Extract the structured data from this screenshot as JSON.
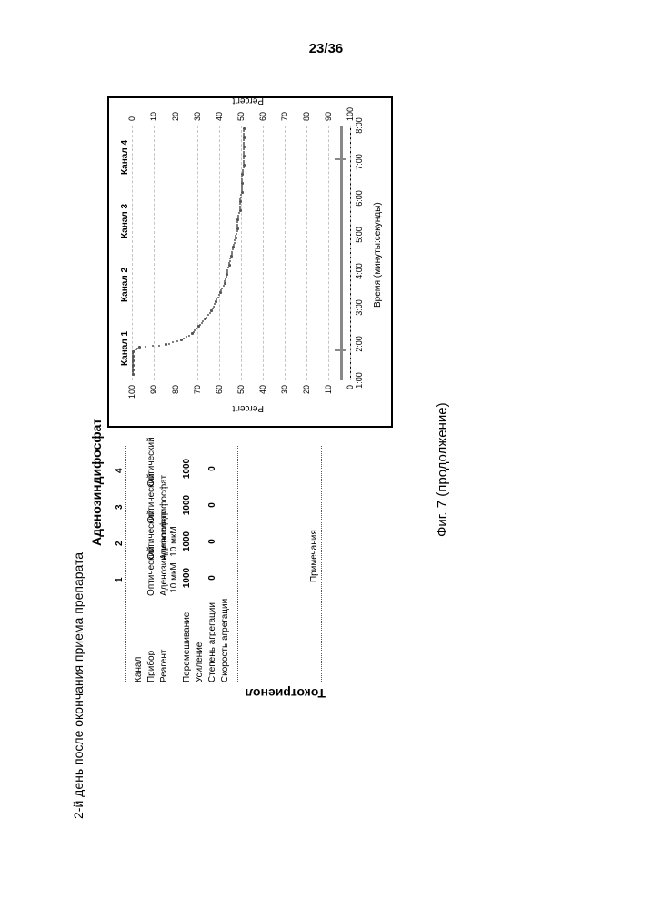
{
  "page": "23/36",
  "title": "2-й день после окончания приема препарата",
  "subtitle": "Аденозиндифосфат",
  "side_label": "Токотриенол",
  "figure": "Фиг. 7 (продолжение)",
  "table": {
    "col_headers": [
      "1",
      "2",
      "3",
      "4"
    ],
    "rows": [
      {
        "label": "Канал",
        "cells": [
          "",
          "",
          "",
          ""
        ]
      },
      {
        "label": "Прибор",
        "cells": [
          "Оптический",
          "Оптический",
          "Оптический",
          "Оптический"
        ]
      },
      {
        "label": "Реагент",
        "cells": [
          "Аденозиндифосфат 10 мкМ",
          "Аденозиндифосфат 10 мкМ",
          "",
          ""
        ]
      },
      {
        "label": "Перемешивание",
        "cells": [
          "1000",
          "1000",
          "1000",
          "1000"
        ]
      },
      {
        "label": "Усиление",
        "cells": [
          "",
          "",
          "",
          ""
        ]
      },
      {
        "label": "Степень агрегации",
        "cells": [
          "0",
          "0",
          "0",
          "0"
        ]
      },
      {
        "label": "Скорость агрегации",
        "cells": [
          "",
          "",
          "",
          ""
        ]
      }
    ],
    "notes_label": "Примечания",
    "border_color": "#555555"
  },
  "chart": {
    "type": "line",
    "background_color": "#ffffff",
    "grid_color": "#c5c5c5",
    "line_color": "#888888",
    "curve_color": "#555555",
    "y_left_label": "Percent",
    "y_right_label": "Percent",
    "x_label": "Время (минуты:секунды)",
    "ylim": [
      0,
      100
    ],
    "yticks": [
      0,
      10,
      20,
      30,
      40,
      50,
      60,
      70,
      80,
      90,
      100
    ],
    "xticks": [
      "1:00",
      "2:00",
      "3:00",
      "4:00",
      "5:00",
      "6:00",
      "7:00",
      "8:00"
    ],
    "channel_headers": [
      "Канал 1",
      "Канал 2",
      "Канал 3",
      "Канал 4"
    ],
    "series_flat_value": 4,
    "curve": [
      {
        "x": 5,
        "y": 100
      },
      {
        "x": 10,
        "y": 100
      },
      {
        "x": 15,
        "y": 100
      },
      {
        "x": 20,
        "y": 100
      },
      {
        "x": 25,
        "y": 100
      },
      {
        "x": 30,
        "y": 100
      },
      {
        "x": 35,
        "y": 97
      },
      {
        "x": 38,
        "y": 85
      },
      {
        "x": 43,
        "y": 78
      },
      {
        "x": 50,
        "y": 73
      },
      {
        "x": 58,
        "y": 70
      },
      {
        "x": 66,
        "y": 67
      },
      {
        "x": 75,
        "y": 64
      },
      {
        "x": 85,
        "y": 62
      },
      {
        "x": 95,
        "y": 60
      },
      {
        "x": 105,
        "y": 58
      },
      {
        "x": 115,
        "y": 57
      },
      {
        "x": 125,
        "y": 56
      },
      {
        "x": 135,
        "y": 55
      },
      {
        "x": 145,
        "y": 54
      },
      {
        "x": 155,
        "y": 53
      },
      {
        "x": 165,
        "y": 52
      },
      {
        "x": 175,
        "y": 52
      },
      {
        "x": 185,
        "y": 51
      },
      {
        "x": 195,
        "y": 51
      },
      {
        "x": 205,
        "y": 50
      },
      {
        "x": 215,
        "y": 50
      },
      {
        "x": 225,
        "y": 50
      },
      {
        "x": 235,
        "y": 49
      },
      {
        "x": 245,
        "y": 49
      },
      {
        "x": 255,
        "y": 49
      },
      {
        "x": 265,
        "y": 49
      },
      {
        "x": 275,
        "y": 49
      }
    ],
    "label_fontsize": 10
  }
}
